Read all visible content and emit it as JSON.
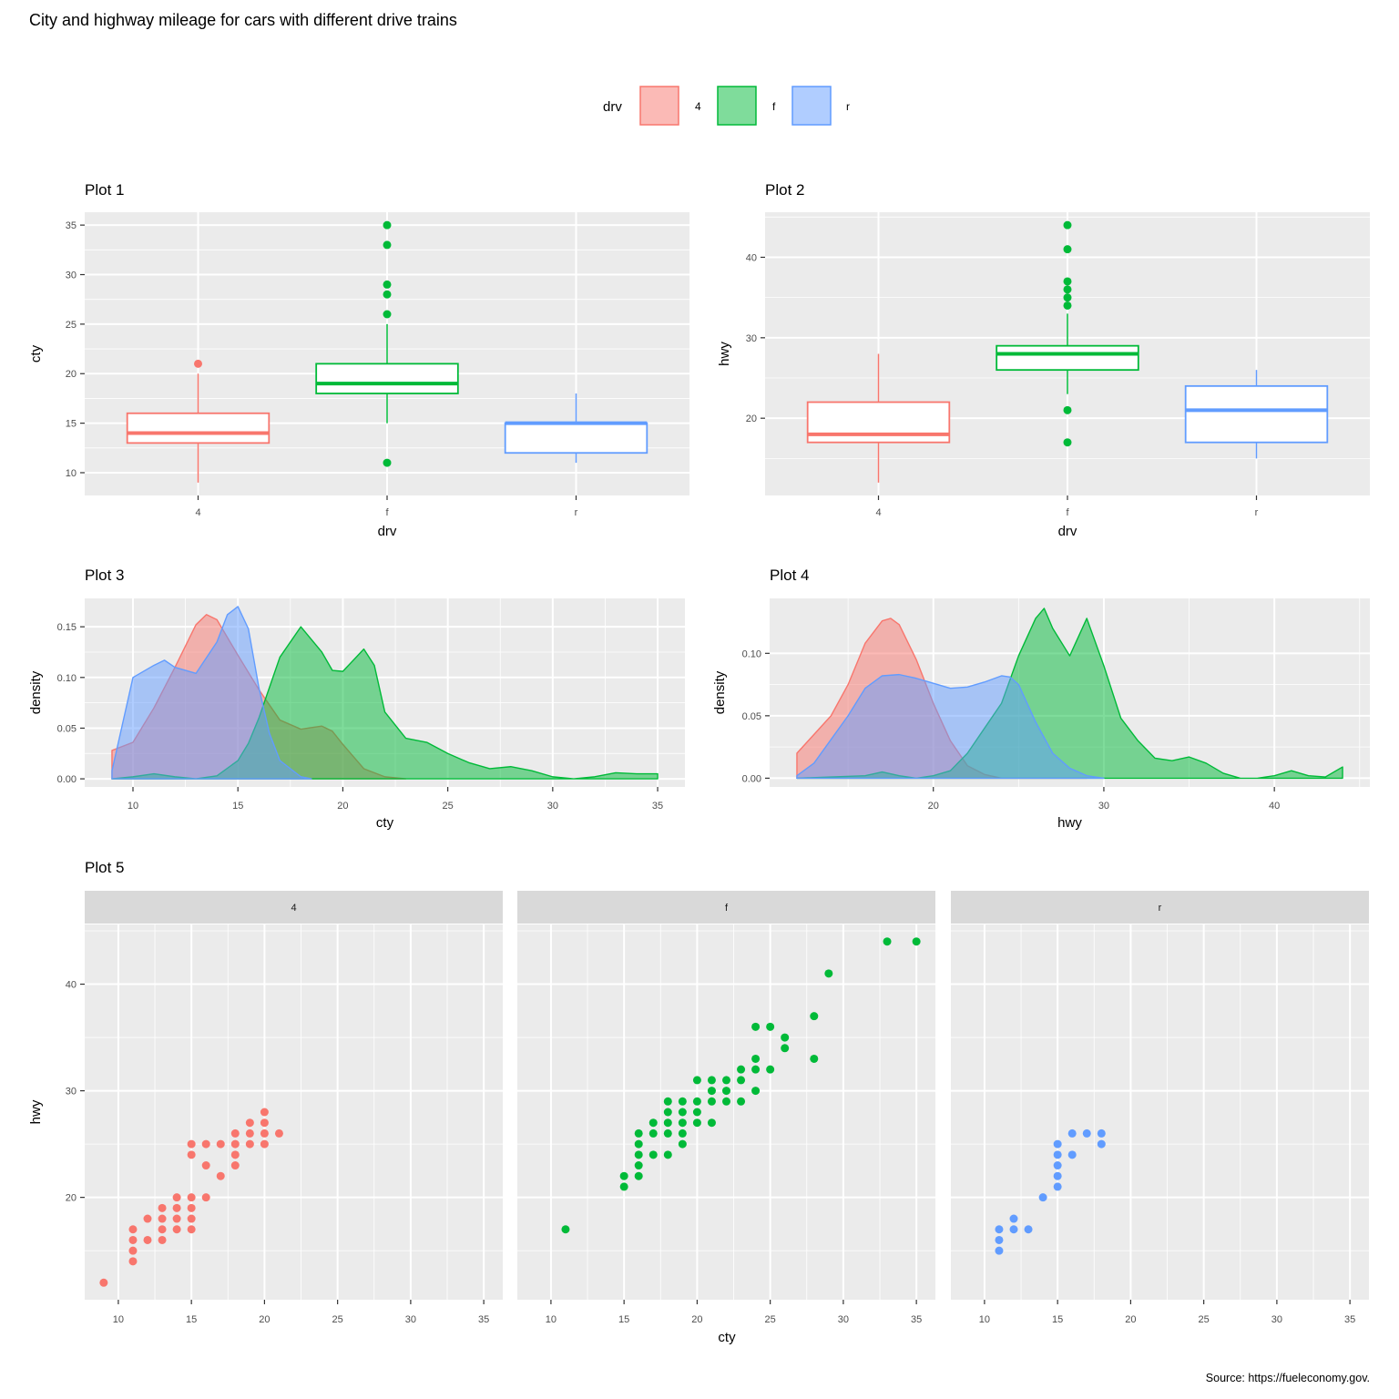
{
  "title": "City and highway mileage for cars with different drive trains",
  "caption": "Source: https://fueleconomy.gov.",
  "legend": {
    "title": "drv",
    "placement": "top",
    "items": [
      {
        "label": "4",
        "color": "#F8766D"
      },
      {
        "label": "f",
        "color": "#00BA38"
      },
      {
        "label": "r",
        "color": "#619CFF"
      }
    ]
  },
  "chart_data": [
    {
      "type": "boxplot",
      "title": "Plot 1",
      "xlabel": "drv",
      "ylabel": "cty",
      "categories": [
        "4",
        "f",
        "r"
      ],
      "ylim": [
        7.7,
        36.3
      ],
      "yticks": [
        10,
        15,
        20,
        25,
        30,
        35
      ],
      "grid": true,
      "boxes": [
        {
          "category": "4",
          "min": 9,
          "q1": 13,
          "median": 14,
          "q3": 16,
          "max": 20,
          "outliers": [
            21
          ]
        },
        {
          "category": "f",
          "min": 15,
          "q1": 18,
          "median": 19,
          "q3": 21,
          "max": 25,
          "outliers": [
            11,
            26,
            28,
            29,
            33,
            35
          ]
        },
        {
          "category": "r",
          "min": 11,
          "q1": 12,
          "median": 15,
          "q3": 15,
          "max": 18,
          "outliers": []
        }
      ]
    },
    {
      "type": "boxplot",
      "title": "Plot 2",
      "xlabel": "drv",
      "ylabel": "hwy",
      "categories": [
        "4",
        "f",
        "r"
      ],
      "ylim": [
        10.4,
        45.6
      ],
      "yticks": [
        20,
        30,
        40
      ],
      "grid": true,
      "boxes": [
        {
          "category": "4",
          "min": 12,
          "q1": 17,
          "median": 18,
          "q3": 22,
          "max": 28,
          "outliers": []
        },
        {
          "category": "f",
          "min": 23,
          "q1": 26,
          "median": 28,
          "q3": 29,
          "max": 33,
          "outliers": [
            17,
            21,
            34,
            35,
            36,
            37,
            41,
            44
          ]
        },
        {
          "category": "r",
          "min": 15,
          "q1": 17,
          "median": 21,
          "q3": 24,
          "max": 26,
          "outliers": []
        }
      ]
    },
    {
      "type": "area",
      "title": "Plot 3",
      "xlabel": "cty",
      "ylabel": "density",
      "xlim": [
        7.7,
        36.3
      ],
      "ylim": [
        -0.008,
        0.178
      ],
      "xticks": [
        10,
        15,
        20,
        25,
        30,
        35
      ],
      "yticks": [
        0.0,
        0.05,
        0.1,
        0.15
      ],
      "ytick_labels": [
        "0.00",
        "0.05",
        "0.10",
        "0.15"
      ],
      "grid": true,
      "series": [
        {
          "name": "4",
          "x": [
            9,
            10,
            11,
            12,
            13,
            13.5,
            14,
            15,
            16,
            17,
            18,
            19,
            19.5,
            20,
            21,
            22,
            23
          ],
          "y": [
            0.028,
            0.036,
            0.07,
            0.11,
            0.152,
            0.162,
            0.157,
            0.122,
            0.088,
            0.058,
            0.049,
            0.052,
            0.047,
            0.034,
            0.01,
            0.002,
            0.0
          ]
        },
        {
          "name": "f",
          "x": [
            9,
            10,
            11,
            12,
            13,
            14,
            15,
            15.5,
            16,
            17,
            18,
            19,
            19.5,
            20,
            21,
            21.5,
            22,
            23,
            24,
            25,
            26,
            27,
            28,
            29,
            30,
            31,
            32,
            33,
            34,
            35
          ],
          "y": [
            0.0,
            0.002,
            0.005,
            0.002,
            0.0,
            0.003,
            0.018,
            0.035,
            0.06,
            0.12,
            0.15,
            0.125,
            0.107,
            0.106,
            0.128,
            0.112,
            0.066,
            0.04,
            0.036,
            0.025,
            0.016,
            0.01,
            0.012,
            0.008,
            0.002,
            0.0,
            0.002,
            0.006,
            0.005,
            0.005
          ]
        },
        {
          "name": "r",
          "x": [
            9,
            10,
            11,
            11.5,
            12,
            13,
            14,
            14.5,
            15,
            15.5,
            16,
            16.5,
            17,
            18,
            18.5
          ],
          "y": [
            0.008,
            0.1,
            0.112,
            0.117,
            0.11,
            0.104,
            0.135,
            0.162,
            0.17,
            0.148,
            0.09,
            0.045,
            0.018,
            0.002,
            0.0
          ]
        }
      ]
    },
    {
      "type": "area",
      "title": "Plot 4",
      "xlabel": "hwy",
      "ylabel": "density",
      "xlim": [
        10.4,
        45.6
      ],
      "ylim": [
        -0.007,
        0.144
      ],
      "xticks": [
        20,
        30,
        40
      ],
      "yticks": [
        0.0,
        0.05,
        0.1
      ],
      "ytick_labels": [
        "0.00",
        "0.05",
        "0.10"
      ],
      "grid": true,
      "series": [
        {
          "name": "4",
          "x": [
            12,
            14,
            15,
            16,
            17,
            17.5,
            18,
            19,
            20,
            21,
            22,
            23,
            24,
            25,
            26,
            27,
            28,
            29
          ],
          "y": [
            0.02,
            0.05,
            0.075,
            0.108,
            0.126,
            0.128,
            0.123,
            0.095,
            0.06,
            0.03,
            0.01,
            0.003,
            0.0,
            0.0,
            0.0,
            0.0,
            0.0,
            0.0
          ]
        },
        {
          "name": "f",
          "x": [
            12,
            16,
            17,
            18,
            19,
            20,
            21,
            22,
            23,
            24,
            25,
            26,
            26.5,
            27,
            28,
            29,
            30,
            31,
            32,
            33,
            34,
            35,
            36,
            37,
            38,
            39,
            40,
            41,
            42,
            43,
            44
          ],
          "y": [
            0.0,
            0.002,
            0.005,
            0.002,
            0.0,
            0.002,
            0.006,
            0.02,
            0.04,
            0.06,
            0.098,
            0.128,
            0.136,
            0.12,
            0.098,
            0.128,
            0.09,
            0.048,
            0.03,
            0.016,
            0.014,
            0.017,
            0.012,
            0.004,
            0.0,
            0.0,
            0.002,
            0.006,
            0.002,
            0.001,
            0.009
          ]
        },
        {
          "name": "r",
          "x": [
            12,
            13,
            15,
            16,
            17,
            18,
            19,
            20,
            21,
            22,
            23,
            24,
            24.5,
            25,
            26,
            27,
            28,
            29,
            30
          ],
          "y": [
            0.002,
            0.012,
            0.05,
            0.072,
            0.082,
            0.083,
            0.08,
            0.076,
            0.072,
            0.073,
            0.077,
            0.082,
            0.081,
            0.075,
            0.045,
            0.02,
            0.008,
            0.002,
            0.0
          ]
        }
      ]
    },
    {
      "type": "scatter",
      "title": "Plot 5",
      "xlabel": "cty",
      "ylabel": "hwy",
      "facet_by": "drv",
      "xlim": [
        7.7,
        36.3
      ],
      "ylim": [
        10.4,
        45.6
      ],
      "xticks": [
        10,
        15,
        20,
        25,
        30,
        35
      ],
      "yticks": [
        20,
        30,
        40
      ],
      "grid": true,
      "panels": [
        {
          "label": "4",
          "points": [
            [
              9,
              12
            ],
            [
              11,
              14
            ],
            [
              11,
              15
            ],
            [
              11,
              16
            ],
            [
              11,
              17
            ],
            [
              12,
              16
            ],
            [
              12,
              18
            ],
            [
              13,
              16
            ],
            [
              13,
              17
            ],
            [
              13,
              18
            ],
            [
              13,
              19
            ],
            [
              14,
              17
            ],
            [
              14,
              18
            ],
            [
              14,
              19
            ],
            [
              14,
              20
            ],
            [
              15,
              17
            ],
            [
              15,
              18
            ],
            [
              15,
              19
            ],
            [
              15,
              20
            ],
            [
              15,
              24
            ],
            [
              15,
              25
            ],
            [
              16,
              20
            ],
            [
              16,
              23
            ],
            [
              16,
              25
            ],
            [
              17,
              22
            ],
            [
              17,
              25
            ],
            [
              18,
              23
            ],
            [
              18,
              24
            ],
            [
              18,
              25
            ],
            [
              18,
              26
            ],
            [
              19,
              25
            ],
            [
              19,
              26
            ],
            [
              19,
              27
            ],
            [
              20,
              25
            ],
            [
              20,
              26
            ],
            [
              20,
              27
            ],
            [
              20,
              28
            ],
            [
              21,
              26
            ]
          ]
        },
        {
          "label": "f",
          "points": [
            [
              11,
              17
            ],
            [
              15,
              21
            ],
            [
              15,
              22
            ],
            [
              16,
              22
            ],
            [
              16,
              23
            ],
            [
              16,
              24
            ],
            [
              16,
              25
            ],
            [
              16,
              26
            ],
            [
              17,
              24
            ],
            [
              17,
              26
            ],
            [
              17,
              27
            ],
            [
              18,
              24
            ],
            [
              18,
              26
            ],
            [
              18,
              27
            ],
            [
              18,
              28
            ],
            [
              18,
              29
            ],
            [
              19,
              25
            ],
            [
              19,
              26
            ],
            [
              19,
              27
            ],
            [
              19,
              28
            ],
            [
              19,
              29
            ],
            [
              20,
              27
            ],
            [
              20,
              28
            ],
            [
              20,
              29
            ],
            [
              20,
              31
            ],
            [
              21,
              27
            ],
            [
              21,
              29
            ],
            [
              21,
              30
            ],
            [
              21,
              31
            ],
            [
              22,
              29
            ],
            [
              22,
              30
            ],
            [
              22,
              31
            ],
            [
              23,
              29
            ],
            [
              23,
              31
            ],
            [
              23,
              32
            ],
            [
              24,
              30
            ],
            [
              24,
              32
            ],
            [
              24,
              33
            ],
            [
              24,
              36
            ],
            [
              25,
              32
            ],
            [
              25,
              36
            ],
            [
              26,
              34
            ],
            [
              26,
              35
            ],
            [
              28,
              33
            ],
            [
              28,
              37
            ],
            [
              29,
              41
            ],
            [
              33,
              44
            ],
            [
              35,
              44
            ]
          ]
        },
        {
          "label": "r",
          "points": [
            [
              11,
              15
            ],
            [
              11,
              16
            ],
            [
              11,
              17
            ],
            [
              12,
              17
            ],
            [
              12,
              18
            ],
            [
              13,
              17
            ],
            [
              14,
              20
            ],
            [
              15,
              21
            ],
            [
              15,
              22
            ],
            [
              15,
              23
            ],
            [
              15,
              24
            ],
            [
              15,
              25
            ],
            [
              16,
              24
            ],
            [
              16,
              26
            ],
            [
              17,
              26
            ],
            [
              18,
              25
            ],
            [
              18,
              26
            ]
          ]
        }
      ]
    }
  ]
}
